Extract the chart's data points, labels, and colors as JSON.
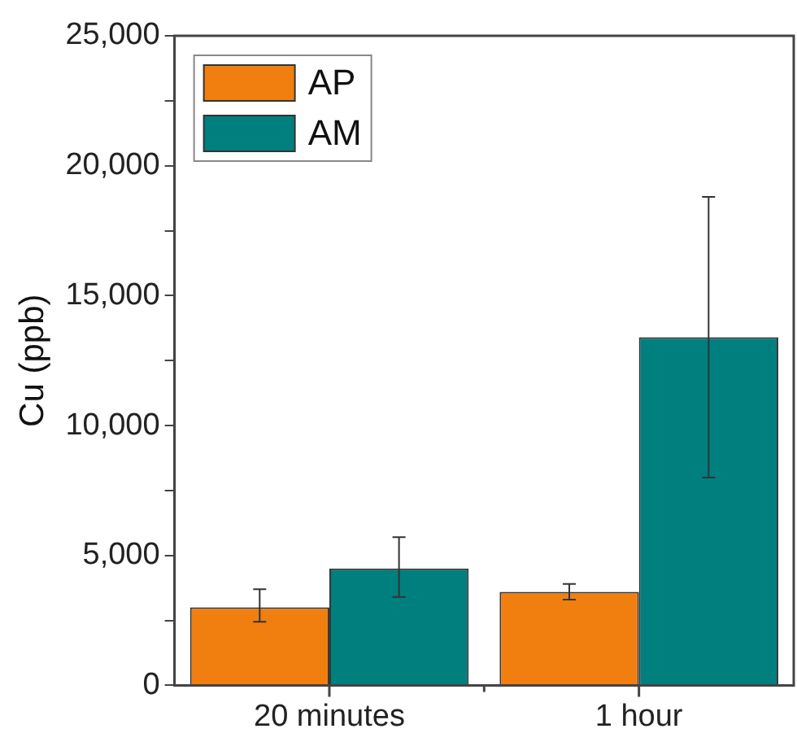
{
  "chart_data": {
    "type": "bar",
    "ylabel": "Cu (ppb)",
    "categories": [
      "20 minutes",
      "1 hour"
    ],
    "series": [
      {
        "name": "AP",
        "color": "#f07f10",
        "values": [
          3000,
          3600
        ],
        "errors": [
          [
            2450,
            3700
          ],
          [
            3300,
            3900
          ]
        ]
      },
      {
        "name": "AM",
        "color": "#007f7f",
        "values": [
          4500,
          13400
        ],
        "errors": [
          [
            3400,
            5700
          ],
          [
            8000,
            18800
          ]
        ]
      }
    ],
    "ylim": [
      0,
      25000
    ],
    "yticks": [
      0,
      {
        "value": 2500,
        "label": null
      },
      {
        "value": 5000,
        "label": "5,000"
      },
      {
        "value": 7500,
        "label": null
      },
      {
        "value": 10000,
        "label": "10,000"
      },
      {
        "value": 12500,
        "label": null
      },
      {
        "value": 15000,
        "label": "15,000"
      },
      {
        "value": 17500,
        "label": null
      },
      {
        "value": 20000,
        "label": "20,000"
      },
      {
        "value": 22500,
        "label": null
      },
      {
        "value": 25000,
        "label": "25,000"
      }
    ],
    "grid": false,
    "legend": "top left"
  }
}
